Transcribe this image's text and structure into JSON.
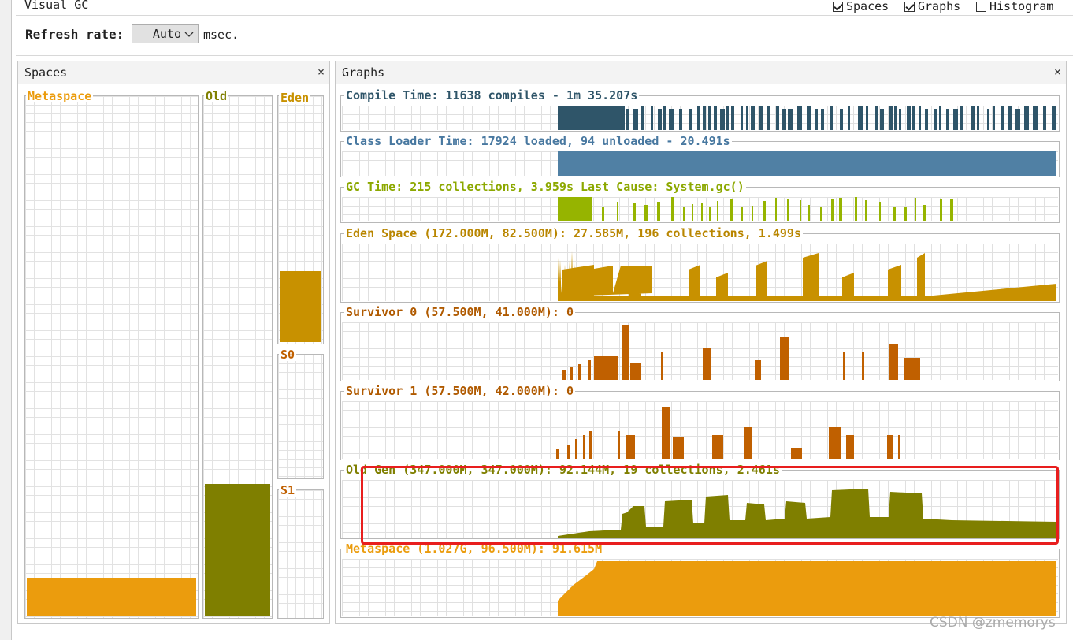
{
  "window": {
    "title": "Visual GC"
  },
  "view_toggles": [
    {
      "label": "Spaces",
      "checked": true
    },
    {
      "label": "Graphs",
      "checked": true
    },
    {
      "label": "Histogram",
      "checked": false
    }
  ],
  "refresh": {
    "label": "Refresh rate:",
    "value": "Auto",
    "unit": "msec."
  },
  "spaces_panel": {
    "title": "Spaces",
    "close": "×",
    "metaspace": {
      "label": "Metaspace",
      "fill_fraction": 0.08,
      "color": "#eb9c0d"
    },
    "old": {
      "label": "Old",
      "fill_fraction": 0.26,
      "color": "#7f7f00"
    },
    "eden": {
      "label": "Eden",
      "fill_fraction": 0.3,
      "color": "#c89100"
    },
    "s0": {
      "label": "S0",
      "fill_fraction": 0,
      "color": "#c06000"
    },
    "s1": {
      "label": "S1",
      "fill_fraction": 0,
      "color": "#c06000"
    }
  },
  "graphs_panel": {
    "title": "Graphs",
    "close": "×",
    "graphs": [
      {
        "title": "Compile Time: 11638 compiles - 1m 35.207s",
        "color": "#2f5569",
        "title_color": "#2f5569",
        "style": "bars"
      },
      {
        "title": "Class Loader Time: 17924 loaded, 94 unloaded - 20.491s",
        "color": "#5080a4",
        "title_color": "#4878a0",
        "style": "block"
      },
      {
        "title": "GC Time: 215 collections, 3.959s  Last Cause: System.gc()",
        "color": "#96b400",
        "title_color": "#8ca800",
        "style": "spikes"
      },
      {
        "title": "Eden Space (172.000M, 82.500M): 27.585M, 196 collections, 1.499s",
        "color": "#c89100",
        "title_color": "#b98600",
        "style": "eden"
      },
      {
        "title": "Survivor 0 (57.500M, 41.000M): 0",
        "color": "#c06000",
        "title_color": "#b05a00",
        "style": "s0"
      },
      {
        "title": "Survivor 1 (57.500M, 42.000M): 0",
        "color": "#c06000",
        "title_color": "#b05a00",
        "style": "s1"
      },
      {
        "title": "Old Gen (347.000M, 347.000M): 92.144M, 19 collections, 2.461s",
        "color": "#7f7f00",
        "title_color": "#7f7f00",
        "style": "old"
      },
      {
        "title": "Metaspace (1.027G, 96.500M): 91.615M",
        "color": "#eb9c0d",
        "title_color": "#eb9c0d",
        "style": "meta"
      }
    ]
  },
  "watermark": "CSDN @zmemorys"
}
